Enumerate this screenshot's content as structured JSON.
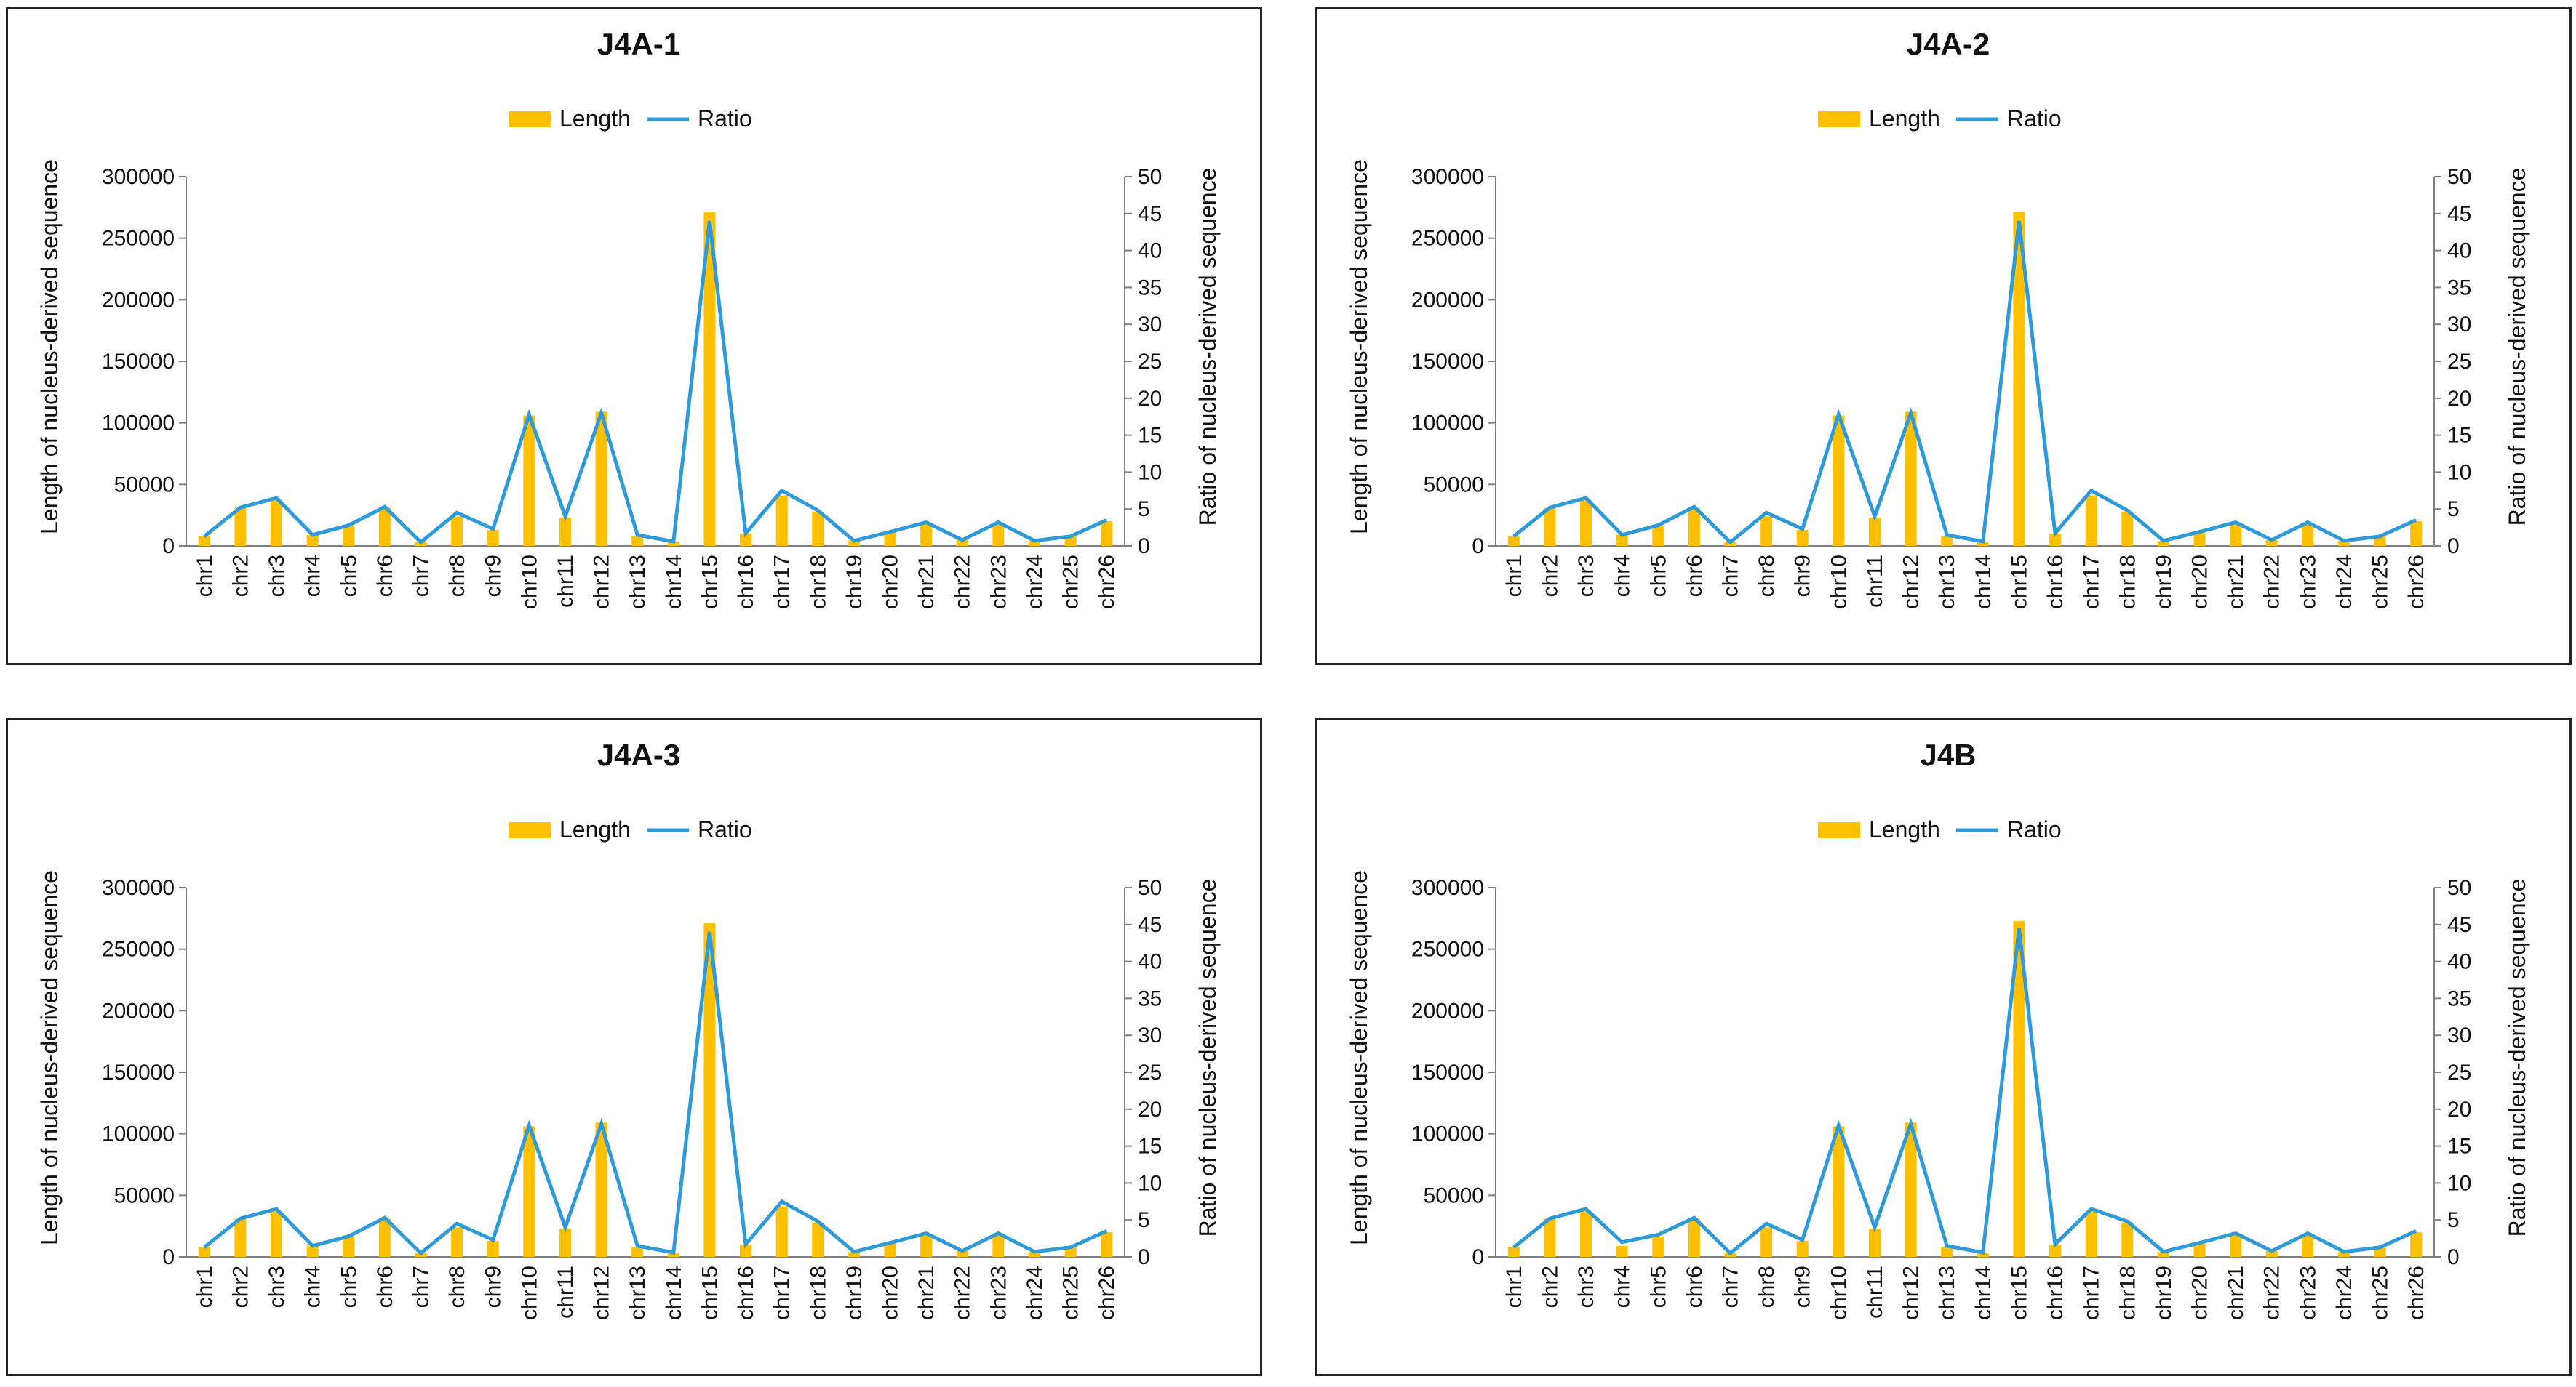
{
  "colors": {
    "bar": "#FFC000",
    "line": "#2E9AD9",
    "axis": "#7F7F7F",
    "text": "#111111"
  },
  "chart_data": [
    {
      "type": "bar+line",
      "title": "J4A-1",
      "legend": [
        "Length",
        "Ratio"
      ],
      "ylabel_left": "Length of nucleus-derived sequence",
      "ylabel_right": "Ratio of nucleus-derived sequence",
      "ylim_left": [
        0,
        300000
      ],
      "yticks_left": [
        0,
        50000,
        100000,
        150000,
        200000,
        250000,
        300000
      ],
      "ylim_right": [
        0,
        50
      ],
      "yticks_right": [
        0,
        5,
        10,
        15,
        20,
        25,
        30,
        35,
        40,
        45,
        50
      ],
      "categories": [
        "chr1",
        "chr2",
        "chr3",
        "chr4",
        "chr5",
        "chr6",
        "chr7",
        "chr8",
        "chr9",
        "chr10",
        "chr11",
        "chr12",
        "chr13",
        "chr14",
        "chr15",
        "chr16",
        "chr17",
        "chr18",
        "chr19",
        "chr20",
        "chr21",
        "chr22",
        "chr23",
        "chr24",
        "chr25",
        "chr26"
      ],
      "series": [
        {
          "name": "Length",
          "axis": "left",
          "values": [
            8000,
            31000,
            37000,
            9000,
            16000,
            31000,
            3000,
            24000,
            13000,
            106000,
            23000,
            109000,
            8000,
            3000,
            271000,
            10000,
            41000,
            28000,
            4000,
            11000,
            18000,
            5000,
            18000,
            4000,
            8000,
            20000
          ]
        },
        {
          "name": "Ratio",
          "axis": "right",
          "values": [
            1.3,
            5.2,
            6.5,
            1.5,
            2.8,
            5.3,
            0.5,
            4.5,
            2.3,
            17.8,
            4.0,
            18.0,
            1.5,
            0.6,
            44.0,
            1.7,
            7.5,
            4.8,
            0.7,
            1.9,
            3.2,
            0.8,
            3.2,
            0.7,
            1.3,
            3.5
          ]
        }
      ]
    },
    {
      "type": "bar+line",
      "title": "J4A-2",
      "legend": [
        "Length",
        "Ratio"
      ],
      "ylabel_left": "Length of nucleus-derived sequence",
      "ylabel_right": "Ratio of nucleus-derived sequence",
      "ylim_left": [
        0,
        300000
      ],
      "yticks_left": [
        0,
        50000,
        100000,
        150000,
        200000,
        250000,
        300000
      ],
      "ylim_right": [
        0,
        50
      ],
      "yticks_right": [
        0,
        5,
        10,
        15,
        20,
        25,
        30,
        35,
        40,
        45,
        50
      ],
      "categories": [
        "chr1",
        "chr2",
        "chr3",
        "chr4",
        "chr5",
        "chr6",
        "chr7",
        "chr8",
        "chr9",
        "chr10",
        "chr11",
        "chr12",
        "chr13",
        "chr14",
        "chr15",
        "chr16",
        "chr17",
        "chr18",
        "chr19",
        "chr20",
        "chr21",
        "chr22",
        "chr23",
        "chr24",
        "chr25",
        "chr26"
      ],
      "series": [
        {
          "name": "Length",
          "axis": "left",
          "values": [
            8000,
            31000,
            37000,
            9000,
            16000,
            31000,
            3000,
            24000,
            13000,
            106000,
            23000,
            109000,
            8000,
            3000,
            271000,
            10000,
            41000,
            28000,
            4000,
            11000,
            18000,
            5000,
            18000,
            4000,
            8000,
            20000
          ]
        },
        {
          "name": "Ratio",
          "axis": "right",
          "values": [
            1.3,
            5.2,
            6.5,
            1.5,
            2.8,
            5.3,
            0.5,
            4.5,
            2.3,
            17.8,
            4.0,
            18.0,
            1.5,
            0.6,
            44.0,
            1.7,
            7.5,
            4.8,
            0.7,
            1.9,
            3.2,
            0.8,
            3.2,
            0.7,
            1.3,
            3.5
          ]
        }
      ]
    },
    {
      "type": "bar+line",
      "title": "J4A-3",
      "legend": [
        "Length",
        "Ratio"
      ],
      "ylabel_left": "Length of nucleus-derived sequence",
      "ylabel_right": "Ratio of nucleus-derived sequence",
      "ylim_left": [
        0,
        300000
      ],
      "yticks_left": [
        0,
        50000,
        100000,
        150000,
        200000,
        250000,
        300000
      ],
      "ylim_right": [
        0,
        50
      ],
      "yticks_right": [
        0,
        5,
        10,
        15,
        20,
        25,
        30,
        35,
        40,
        45,
        50
      ],
      "categories": [
        "chr1",
        "chr2",
        "chr3",
        "chr4",
        "chr5",
        "chr6",
        "chr7",
        "chr8",
        "chr9",
        "chr10",
        "chr11",
        "chr12",
        "chr13",
        "chr14",
        "chr15",
        "chr16",
        "chr17",
        "chr18",
        "chr19",
        "chr20",
        "chr21",
        "chr22",
        "chr23",
        "chr24",
        "chr25",
        "chr26"
      ],
      "series": [
        {
          "name": "Length",
          "axis": "left",
          "values": [
            8000,
            31000,
            37000,
            9000,
            16000,
            31000,
            3000,
            24000,
            13000,
            106000,
            23000,
            109000,
            8000,
            3000,
            271000,
            10000,
            41000,
            28000,
            4000,
            11000,
            18000,
            5000,
            18000,
            4000,
            8000,
            20000
          ]
        },
        {
          "name": "Ratio",
          "axis": "right",
          "values": [
            1.3,
            5.2,
            6.5,
            1.5,
            2.8,
            5.3,
            0.5,
            4.5,
            2.3,
            17.8,
            4.0,
            18.0,
            1.5,
            0.6,
            44.0,
            1.7,
            7.5,
            4.8,
            0.7,
            1.9,
            3.2,
            0.8,
            3.2,
            0.7,
            1.3,
            3.5
          ]
        }
      ]
    },
    {
      "type": "bar+line",
      "title": "J4B",
      "legend": [
        "Length",
        "Ratio"
      ],
      "ylabel_left": "Length of nucleus-derived sequence",
      "ylabel_right": "Ratio of nucleus-derived sequence",
      "ylim_left": [
        0,
        300000
      ],
      "yticks_left": [
        0,
        50000,
        100000,
        150000,
        200000,
        250000,
        300000
      ],
      "ylim_right": [
        0,
        50
      ],
      "yticks_right": [
        0,
        5,
        10,
        15,
        20,
        25,
        30,
        35,
        40,
        45,
        50
      ],
      "categories": [
        "chr1",
        "chr2",
        "chr3",
        "chr4",
        "chr5",
        "chr6",
        "chr7",
        "chr8",
        "chr9",
        "chr10",
        "chr11",
        "chr12",
        "chr13",
        "chr14",
        "chr15",
        "chr16",
        "chr17",
        "chr18",
        "chr19",
        "chr20",
        "chr21",
        "chr22",
        "chr23",
        "chr24",
        "chr25",
        "chr26"
      ],
      "series": [
        {
          "name": "Length",
          "axis": "left",
          "values": [
            8000,
            31000,
            37000,
            9000,
            16000,
            31000,
            3000,
            24000,
            13000,
            106000,
            23000,
            109000,
            8000,
            3000,
            273000,
            10000,
            37000,
            28000,
            4000,
            11000,
            18000,
            5000,
            18000,
            4000,
            8000,
            20000
          ]
        },
        {
          "name": "Ratio",
          "axis": "right",
          "values": [
            1.3,
            5.2,
            6.5,
            2.0,
            3.0,
            5.3,
            0.5,
            4.5,
            2.3,
            17.8,
            4.0,
            18.0,
            1.5,
            0.6,
            44.5,
            1.7,
            6.5,
            4.8,
            0.7,
            1.9,
            3.2,
            0.8,
            3.2,
            0.7,
            1.3,
            3.5
          ]
        }
      ]
    }
  ]
}
